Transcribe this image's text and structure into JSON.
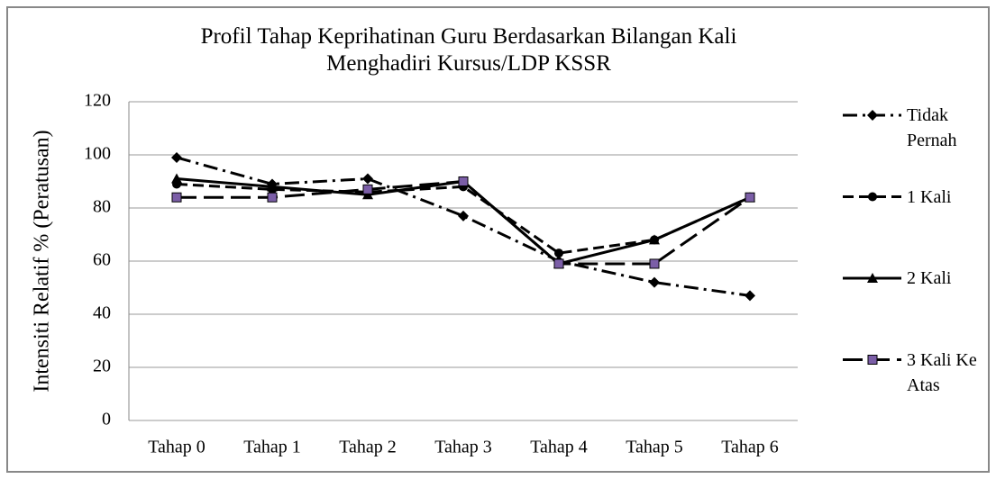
{
  "chart_data": {
    "type": "line",
    "title": "Profil Tahap Keprihatinan Guru Berdasarkan Bilangan Kali Menghadiri Kursus/LDP KSSR",
    "y_label": "Intensiti Relatif %  (Peratusan)",
    "categories": [
      "Tahap 0",
      "Tahap 1",
      "Tahap 2",
      "Tahap 3",
      "Tahap 4",
      "Tahap 5",
      "Tahap 6"
    ],
    "series": [
      {
        "name": "Tidak Pernah",
        "color": "#000000",
        "dash": "dash-dot",
        "marker": "diamond",
        "marker_color": "#000000",
        "values": [
          99,
          89,
          91,
          77,
          60,
          52,
          47
        ]
      },
      {
        "name": "1 Kali",
        "color": "#000000",
        "dash": "dashed",
        "marker": "circle",
        "marker_color": "#000000",
        "values": [
          89,
          87,
          86,
          88,
          63,
          68,
          84
        ]
      },
      {
        "name": "2 Kali",
        "color": "#000000",
        "dash": "solid",
        "marker": "triangle",
        "marker_color": "#000000",
        "values": [
          91,
          88,
          85,
          90,
          59,
          68,
          84
        ]
      },
      {
        "name": "3 Kali Ke Atas",
        "color": "#000000",
        "dash": "long-dash",
        "marker": "square",
        "marker_color": "#7b5ea7",
        "values": [
          84,
          84,
          87,
          90,
          59,
          59,
          84
        ]
      }
    ],
    "ylim": [
      0,
      120
    ],
    "yticks": [
      0,
      20,
      40,
      60,
      80,
      100,
      120
    ],
    "grid": true,
    "legend": "right"
  }
}
